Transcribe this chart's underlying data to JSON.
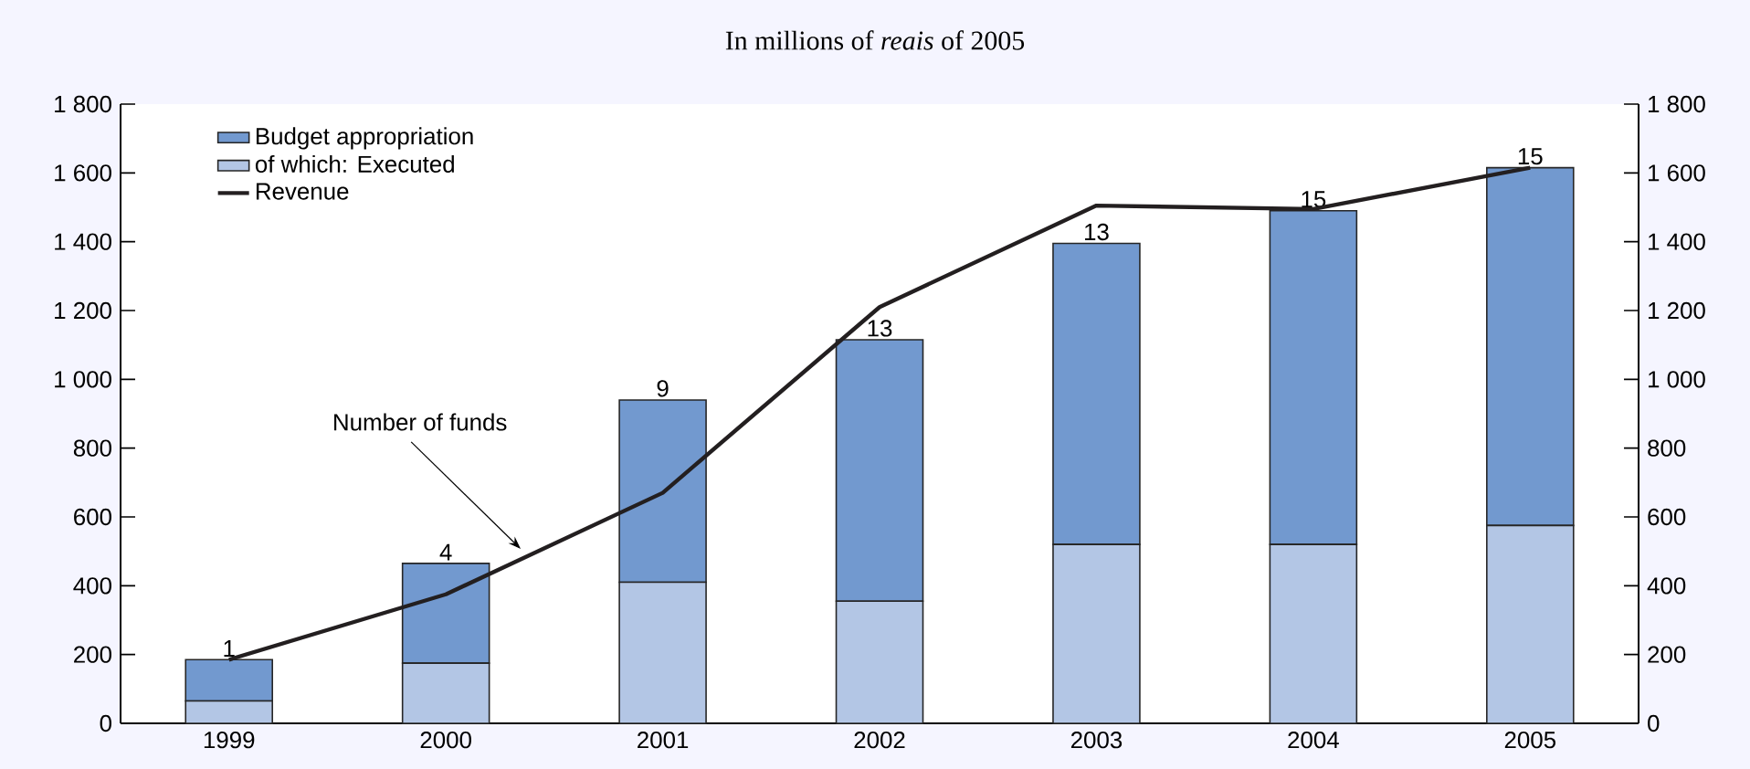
{
  "chart_data": {
    "type": "bar",
    "subtitle": "In millions of *reais* of 2005",
    "stacked": true,
    "categories": [
      "1999",
      "2000",
      "2001",
      "2002",
      "2003",
      "2004",
      "2005"
    ],
    "series": [
      {
        "name": "of which: Executed",
        "color": "#b3c6e5",
        "values": [
          65,
          175,
          410,
          355,
          520,
          520,
          575
        ]
      },
      {
        "name": "Budget appropriation",
        "color": "#7299cf",
        "values": [
          120,
          290,
          530,
          760,
          875,
          970,
          1040
        ]
      },
      {
        "name": "Revenue",
        "type": "line",
        "color": "#231f20",
        "values": [
          185,
          375,
          670,
          1210,
          1505,
          1495,
          1615
        ]
      }
    ],
    "ylim": [
      0,
      1800
    ],
    "yticks": [
      0,
      200,
      400,
      600,
      800,
      {
        "value": 1000,
        "label": "1 000"
      },
      {
        "value": 1200,
        "label": "1 200"
      },
      {
        "value": 1400,
        "label": "1 400"
      },
      {
        "value": 1600,
        "label": "1 600"
      },
      {
        "value": 1800,
        "label": "1 800"
      }
    ],
    "y2lim": [
      0,
      1800
    ],
    "y2ticks": [
      0,
      200,
      400,
      600,
      800,
      {
        "value": 1000,
        "label": "1 000"
      },
      {
        "value": 1200,
        "label": "1 200"
      },
      {
        "value": 1400,
        "label": "1 400"
      },
      {
        "value": 1600,
        "label": "1 600"
      },
      {
        "value": 1800,
        "label": "1 800"
      }
    ],
    "legend": "top left",
    "annotations": [
      {
        "text": "1",
        "x": "1999",
        "y": 185
      },
      {
        "text": "4",
        "x": "2000",
        "y": 465
      },
      {
        "text": "9",
        "x": "2001",
        "y": 940
      },
      {
        "text": "13",
        "x": "2002",
        "y": 1115
      },
      {
        "text": "13",
        "x": "2003",
        "y": 1395
      },
      {
        "text": "15",
        "x": "2004",
        "y": 1490
      },
      {
        "text": "15",
        "x": "2005",
        "y": 1615
      },
      "Number of funds"
    ]
  }
}
